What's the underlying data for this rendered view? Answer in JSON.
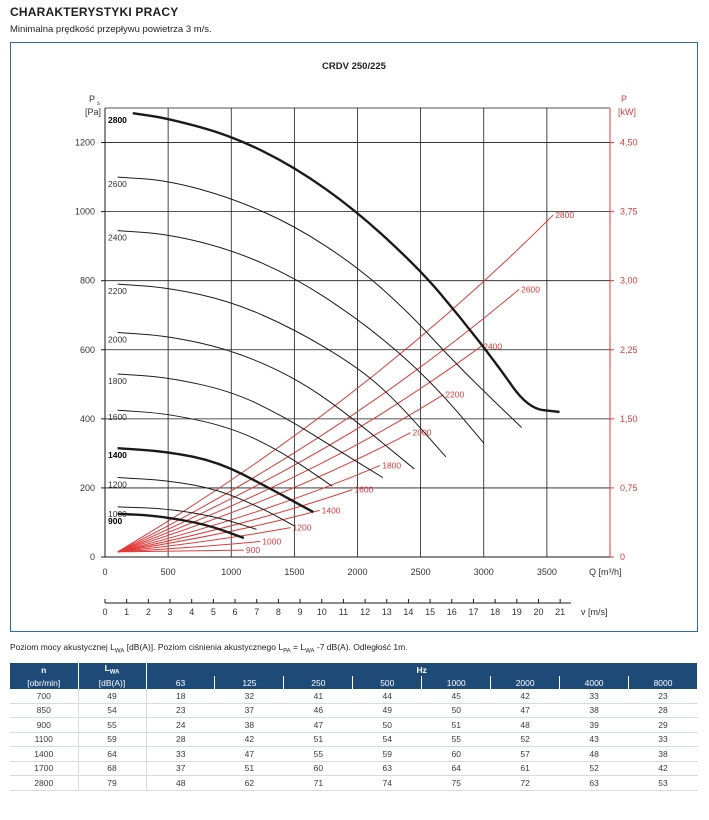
{
  "header": {
    "title": "CHARAKTERYSTYKI PRACY",
    "subtitle": "Minimalna prędkość przepływu powietrza 3 m/s."
  },
  "colors": {
    "frame": "#2b6cb0",
    "power": "#e03a3a",
    "fan": "#1a1a1a",
    "table_header": "#1e4a78",
    "grid": "#1a1a1a"
  },
  "chart_data": {
    "type": "line",
    "title": "CRDV 250/225",
    "y_left": {
      "label_line1": "P",
      "label_sub": "s",
      "label_line2": "[Pa]",
      "range": [
        0,
        1300
      ],
      "ticks": [
        0,
        200,
        400,
        600,
        800,
        1000,
        1200
      ],
      "tick_labels": [
        "0",
        "200",
        "400",
        "600",
        "800",
        "1000",
        "1200"
      ]
    },
    "y_right": {
      "label_line1": "P",
      "label_line2": "[kW]",
      "range": [
        0,
        4.875
      ],
      "ticks": [
        0,
        0.75,
        1.5,
        2.25,
        3.0,
        3.75,
        4.5
      ],
      "tick_labels": [
        "0",
        "0,75",
        "1,50",
        "2,25",
        "3,00",
        "3,75",
        "4,50"
      ]
    },
    "x_q": {
      "label": "Q [m³/h]",
      "range": [
        0,
        4000
      ],
      "ticks": [
        0,
        500,
        1000,
        1500,
        2000,
        2500,
        3000,
        3500
      ],
      "tick_labels": [
        "0",
        "500",
        "1000",
        "1500",
        "2000",
        "2500",
        "3000",
        "3500"
      ]
    },
    "x_v": {
      "label": "v [m/s]",
      "ticks": [
        0,
        1,
        2,
        3,
        4,
        5,
        6,
        7,
        8,
        9,
        10,
        11,
        12,
        13,
        14,
        15,
        16,
        17,
        18,
        19,
        20,
        21
      ],
      "tick_labels": [
        "0",
        "1",
        "2",
        "3",
        "4",
        "5",
        "6",
        "7",
        "8",
        "9",
        "10",
        "11",
        "12",
        "13",
        "14",
        "15",
        "16",
        "17",
        "18",
        "19",
        "20",
        "21"
      ]
    },
    "fan_curves": [
      {
        "rpm": "2800",
        "bold": true,
        "label": "2800",
        "points": [
          [
            220,
            1285
          ],
          [
            500,
            1270
          ],
          [
            1000,
            1220
          ],
          [
            1500,
            1130
          ],
          [
            2000,
            1000
          ],
          [
            2500,
            830
          ],
          [
            2800,
            700
          ],
          [
            3100,
            560
          ],
          [
            3350,
            430
          ],
          [
            3600,
            420
          ]
        ]
      },
      {
        "rpm": "2600",
        "bold": false,
        "label": "2600",
        "points": [
          [
            100,
            1100
          ],
          [
            500,
            1090
          ],
          [
            1000,
            1040
          ],
          [
            1500,
            960
          ],
          [
            2000,
            840
          ],
          [
            2400,
            710
          ],
          [
            2700,
            590
          ],
          [
            3000,
            480
          ],
          [
            3300,
            375
          ]
        ]
      },
      {
        "rpm": "2400",
        "bold": false,
        "label": "2400",
        "points": [
          [
            100,
            945
          ],
          [
            500,
            935
          ],
          [
            1000,
            890
          ],
          [
            1500,
            810
          ],
          [
            2000,
            690
          ],
          [
            2400,
            570
          ],
          [
            2700,
            460
          ],
          [
            3000,
            330
          ]
        ]
      },
      {
        "rpm": "2200",
        "bold": false,
        "label": "2200",
        "points": [
          [
            100,
            790
          ],
          [
            500,
            780
          ],
          [
            1000,
            740
          ],
          [
            1500,
            660
          ],
          [
            2000,
            550
          ],
          [
            2300,
            455
          ],
          [
            2700,
            290
          ]
        ]
      },
      {
        "rpm": "2000",
        "bold": false,
        "label": "2000",
        "points": [
          [
            100,
            650
          ],
          [
            500,
            640
          ],
          [
            1000,
            600
          ],
          [
            1500,
            520
          ],
          [
            1900,
            420
          ],
          [
            2450,
            255
          ]
        ]
      },
      {
        "rpm": "1800",
        "bold": false,
        "label": "1800",
        "points": [
          [
            100,
            530
          ],
          [
            500,
            520
          ],
          [
            1000,
            480
          ],
          [
            1400,
            410
          ],
          [
            1800,
            320
          ],
          [
            2200,
            230
          ]
        ]
      },
      {
        "rpm": "1600",
        "bold": false,
        "label": "1600",
        "points": [
          [
            100,
            425
          ],
          [
            500,
            415
          ],
          [
            1000,
            375
          ],
          [
            1400,
            305
          ],
          [
            1800,
            205
          ]
        ]
      },
      {
        "rpm": "1400",
        "bold": true,
        "label": "1400",
        "points": [
          [
            100,
            315
          ],
          [
            500,
            305
          ],
          [
            900,
            275
          ],
          [
            1300,
            200
          ],
          [
            1650,
            130
          ]
        ]
      },
      {
        "rpm": "1200",
        "bold": false,
        "label": "1200",
        "points": [
          [
            100,
            230
          ],
          [
            500,
            222
          ],
          [
            900,
            195
          ],
          [
            1250,
            140
          ],
          [
            1500,
            90
          ]
        ]
      },
      {
        "rpm": "1000",
        "bold": false,
        "label": "1000",
        "points": [
          [
            100,
            145
          ],
          [
            500,
            140
          ],
          [
            900,
            115
          ],
          [
            1200,
            80
          ]
        ]
      },
      {
        "rpm": "900",
        "bold": true,
        "label": "900",
        "points": [
          [
            100,
            125
          ],
          [
            400,
            120
          ],
          [
            800,
            95
          ],
          [
            1100,
            55
          ]
        ]
      }
    ],
    "power_curves": [
      {
        "rpm": "2800",
        "label": "2800",
        "end": [
          3550,
          990
        ]
      },
      {
        "rpm": "2600",
        "label": "2600",
        "end": [
          3280,
          775
        ]
      },
      {
        "rpm": "2400",
        "label": "2400",
        "end": [
          2980,
          610
        ]
      },
      {
        "rpm": "2200",
        "label": "2200",
        "end": [
          2680,
          470
        ]
      },
      {
        "rpm": "2000",
        "label": "2000",
        "end": [
          2420,
          360
        ]
      },
      {
        "rpm": "1800",
        "label": "1800",
        "end": [
          2180,
          265
        ]
      },
      {
        "rpm": "1600",
        "label": "1600",
        "end": [
          1960,
          195
        ]
      },
      {
        "rpm": "1400",
        "label": "1400",
        "end": [
          1700,
          135
        ]
      },
      {
        "rpm": "1200",
        "label": "1200",
        "end": [
          1470,
          85
        ]
      },
      {
        "rpm": "1000",
        "label": "1000",
        "end": [
          1230,
          45
        ]
      },
      {
        "rpm": "900",
        "label": "900",
        "end": [
          1100,
          20
        ]
      }
    ]
  },
  "acoustic": {
    "text_a": "Poziom mocy akustycznej L",
    "sub_wa": "WA",
    "text_b": " [dB(A)]. Poziom ciśnienia akustycznego L",
    "sub_pa": "PA",
    "text_c": " = L",
    "sub_wa2": "WA",
    "text_d": " -7 dB(A). Odległość 1m."
  },
  "table": {
    "h_n": "n",
    "h_lwa": "L",
    "h_lwa_sub": "WA",
    "h_hz": "Hz",
    "h_unit_n": "[obr/min]",
    "h_unit_lwa": "[dB(A)]",
    "freqs": [
      "63",
      "125",
      "250",
      "500",
      "1000",
      "2000",
      "4000",
      "8000"
    ],
    "rows": [
      [
        "700",
        "49",
        "18",
        "32",
        "41",
        "44",
        "45",
        "42",
        "33",
        "23"
      ],
      [
        "850",
        "54",
        "23",
        "37",
        "46",
        "49",
        "50",
        "47",
        "38",
        "28"
      ],
      [
        "900",
        "55",
        "24",
        "38",
        "47",
        "50",
        "51",
        "48",
        "39",
        "29"
      ],
      [
        "1100",
        "59",
        "28",
        "42",
        "51",
        "54",
        "55",
        "52",
        "43",
        "33"
      ],
      [
        "1400",
        "64",
        "33",
        "47",
        "55",
        "59",
        "60",
        "57",
        "48",
        "38"
      ],
      [
        "1700",
        "68",
        "37",
        "51",
        "60",
        "63",
        "64",
        "61",
        "52",
        "42"
      ],
      [
        "2800",
        "79",
        "48",
        "62",
        "71",
        "74",
        "75",
        "72",
        "63",
        "53"
      ]
    ]
  }
}
